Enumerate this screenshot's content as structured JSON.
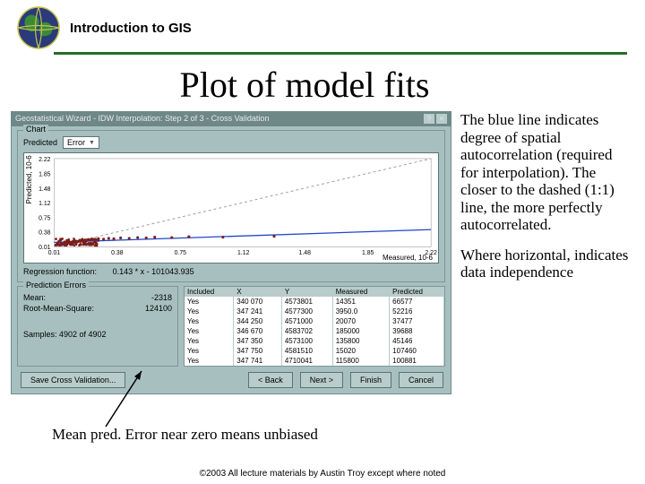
{
  "header": {
    "text": "Introduction to GIS"
  },
  "title": "Plot of model fits",
  "wizard": {
    "title": "Geostatistical Wizard - IDW Interpolation: Step 2 of 3 - Cross Validation",
    "chart": {
      "panel_label": "Chart",
      "predicted_label": "Predicted",
      "dropdown_value": "Error",
      "ylabel": "Predicted, 10-6",
      "xlabel": "Measured, 10-6",
      "yticks": [
        "2.22",
        "1.85",
        "1.48",
        "1.12",
        "0.75",
        "0.38",
        "0.01"
      ],
      "xticks": [
        "0.01",
        "0.38",
        "0.75",
        "1.12",
        "1.48",
        "1.85",
        "2.22"
      ],
      "regression_label": "Regression function:",
      "regression_value": "0.143 * x - 101043.935",
      "points": [
        [
          0.02,
          0.05
        ],
        [
          0.03,
          0.07
        ],
        [
          0.04,
          0.06
        ],
        [
          0.05,
          0.09
        ],
        [
          0.06,
          0.08
        ],
        [
          0.07,
          0.1
        ],
        [
          0.08,
          0.12
        ],
        [
          0.09,
          0.11
        ],
        [
          0.1,
          0.13
        ],
        [
          0.11,
          0.12
        ],
        [
          0.12,
          0.14
        ],
        [
          0.13,
          0.13
        ],
        [
          0.14,
          0.15
        ],
        [
          0.15,
          0.14
        ],
        [
          0.16,
          0.17
        ],
        [
          0.17,
          0.15
        ],
        [
          0.18,
          0.16
        ],
        [
          0.19,
          0.18
        ],
        [
          0.2,
          0.17
        ],
        [
          0.21,
          0.19
        ],
        [
          0.22,
          0.18
        ],
        [
          0.23,
          0.2
        ],
        [
          0.25,
          0.19
        ],
        [
          0.27,
          0.21
        ],
        [
          0.3,
          0.2
        ],
        [
          0.33,
          0.22
        ],
        [
          0.36,
          0.21
        ],
        [
          0.4,
          0.23
        ],
        [
          0.45,
          0.22
        ],
        [
          0.5,
          0.24
        ],
        [
          0.55,
          0.23
        ],
        [
          0.6,
          0.25
        ],
        [
          0.7,
          0.24
        ],
        [
          0.8,
          0.26
        ],
        [
          1.0,
          0.25
        ],
        [
          1.3,
          0.27
        ]
      ],
      "colors": {
        "background": "#ffffff",
        "grid": "#b8cccb",
        "diag_line": "#9aa0a0",
        "fit_line": "#2246c8",
        "point": "#7b1e1e"
      },
      "xlim": [
        0.01,
        2.22
      ],
      "ylim": [
        0.01,
        2.22
      ]
    },
    "errors_label": "Prediction Errors",
    "stats": {
      "mean_label": "Mean:",
      "mean_value": "-2318",
      "rms_label": "Root-Mean-Square:",
      "rms_value": "124100",
      "samples_label": "Samples: 4902 of 4902"
    },
    "table": {
      "columns": [
        "Included",
        "X",
        "Y",
        "Measured",
        "Predicted"
      ],
      "rows": [
        [
          "Yes",
          "340 070",
          "4573801",
          "14351",
          "66577"
        ],
        [
          "Yes",
          "347 241",
          "4577300",
          "3950.0",
          "52216"
        ],
        [
          "Yes",
          "344 250",
          "4571000",
          "20070",
          "37477"
        ],
        [
          "Yes",
          "346 670",
          "4583702",
          "185000",
          "39688"
        ],
        [
          "Yes",
          "347 350",
          "4573100",
          "135800",
          "45146"
        ],
        [
          "Yes",
          "347 750",
          "4581510",
          "15020",
          "107460"
        ],
        [
          "Yes",
          "347 741",
          "4710041",
          "115800",
          "100881"
        ]
      ]
    },
    "buttons": {
      "save": "Save Cross Validation...",
      "back": "< Back",
      "next": "Next >",
      "finish": "Finish",
      "cancel": "Cancel"
    }
  },
  "side": {
    "p1": "The blue line indicates degree of spatial autocorrelation (required for interpolation). The closer to the dashed (1:1) line, the more perfectly autocorrelated.",
    "p2": "Where horizontal, indicates data independence"
  },
  "caption": "Mean pred. Error near zero means unbiased",
  "copyright": "©2003 All lecture materials by Austin Troy except where noted"
}
